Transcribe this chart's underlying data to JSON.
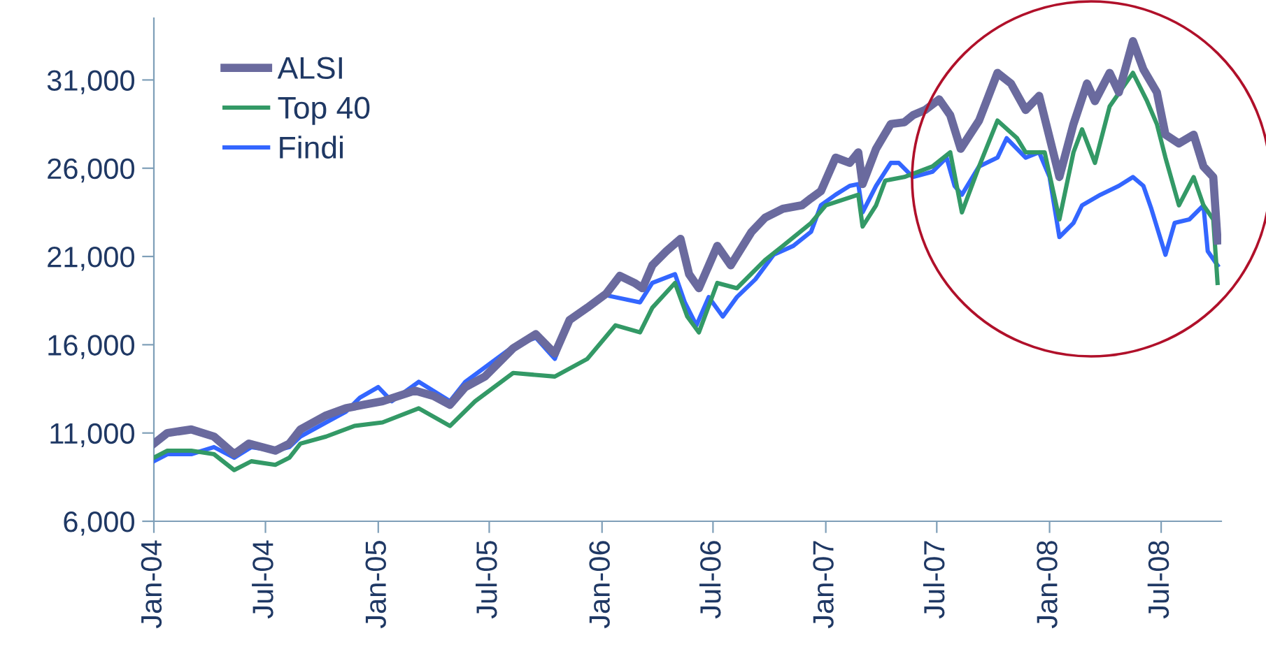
{
  "chart_data": {
    "type": "line",
    "xlim": [
      "2004-01-01",
      "2008-10-07"
    ],
    "xticks": [
      {
        "value": "2004-01-01",
        "label": "Jan-04"
      },
      {
        "value": "2004-07-01",
        "label": "Jul-04"
      },
      {
        "value": "2005-01-01",
        "label": "Jan-05"
      },
      {
        "value": "2005-07-01",
        "label": "Jul-05"
      },
      {
        "value": "2006-01-01",
        "label": "Jan-06"
      },
      {
        "value": "2006-07-01",
        "label": "Jul-06"
      },
      {
        "value": "2007-01-01",
        "label": "Jan-07"
      },
      {
        "value": "2007-07-01",
        "label": "Jul-07"
      },
      {
        "value": "2008-01-01",
        "label": "Jan-08"
      },
      {
        "value": "2008-07-01",
        "label": "Jul-08"
      }
    ],
    "ylim": [
      6000,
      34500
    ],
    "yticks": [
      {
        "value": 6000,
        "label": "6,000"
      },
      {
        "value": 11000,
        "label": "11,000"
      },
      {
        "value": 16000,
        "label": "16,000"
      },
      {
        "value": 21000,
        "label": "21,000"
      },
      {
        "value": 26000,
        "label": "26,000"
      },
      {
        "value": 31000,
        "label": "31,000"
      }
    ],
    "grid": false,
    "legend": "top left",
    "marker": "none",
    "line_style": "solid",
    "series": [
      {
        "name": "ALSI",
        "color": "#6a6a9e",
        "x": [
          "2004-01-01",
          "2004-01-23",
          "2004-03-02",
          "2004-04-08",
          "2004-05-11",
          "2004-06-04",
          "2004-07-17",
          "2004-08-09",
          "2004-08-27",
          "2004-10-08",
          "2004-11-09",
          "2004-12-08",
          "2005-01-08",
          "2005-03-02",
          "2005-04-01",
          "2005-04-28",
          "2005-05-23",
          "2005-06-24",
          "2005-08-09",
          "2005-09-15",
          "2005-10-16",
          "2005-11-09",
          "2005-12-08",
          "2006-01-08",
          "2006-01-30",
          "2006-02-23",
          "2006-03-08",
          "2006-03-24",
          "2006-04-16",
          "2006-05-09",
          "2006-05-23",
          "2006-06-08",
          "2006-07-08",
          "2006-07-30",
          "2006-09-02",
          "2006-09-24",
          "2006-10-23",
          "2006-11-23",
          "2006-12-08",
          "2006-12-24",
          "2007-01-17",
          "2007-02-09",
          "2007-02-23",
          "2007-03-02",
          "2007-03-24",
          "2007-04-17",
          "2007-05-09",
          "2007-05-23",
          "2007-06-12",
          "2007-07-05",
          "2007-07-23",
          "2007-08-09",
          "2007-09-08",
          "2007-10-08",
          "2007-10-30",
          "2007-11-23",
          "2007-12-15",
          "2008-01-17",
          "2008-02-09",
          "2008-03-02",
          "2008-03-15",
          "2008-04-08",
          "2008-04-23",
          "2008-05-16",
          "2008-06-02",
          "2008-06-24",
          "2008-07-08",
          "2008-07-30",
          "2008-08-23",
          "2008-09-08",
          "2008-09-24",
          "2008-10-01"
        ],
        "values": [
          10400,
          11000,
          11200,
          10800,
          9800,
          10400,
          10000,
          10400,
          11200,
          12000,
          12400,
          12600,
          12800,
          13400,
          13100,
          12600,
          13600,
          14200,
          15800,
          16600,
          15500,
          17400,
          18100,
          18900,
          19900,
          19500,
          19200,
          20500,
          21300,
          22000,
          20000,
          19200,
          21600,
          20500,
          22400,
          23200,
          23700,
          23900,
          24300,
          24700,
          26600,
          26300,
          26900,
          25100,
          27100,
          28500,
          28600,
          29000,
          29300,
          29900,
          29000,
          27100,
          28700,
          31400,
          30800,
          29300,
          30100,
          25500,
          28500,
          30800,
          29800,
          31400,
          30300,
          33200,
          31600,
          30300,
          27900,
          27400,
          27900,
          26100,
          25500,
          21900
        ]
      },
      {
        "name": "Top 40",
        "color": "#339966",
        "x": [
          "2004-01-01",
          "2004-01-23",
          "2004-03-02",
          "2004-04-08",
          "2004-05-11",
          "2004-06-08",
          "2004-07-17",
          "2004-08-09",
          "2004-08-27",
          "2004-10-08",
          "2004-11-23",
          "2005-01-08",
          "2005-03-08",
          "2005-04-28",
          "2005-06-08",
          "2005-08-09",
          "2005-10-16",
          "2005-12-08",
          "2006-01-23",
          "2006-03-04",
          "2006-03-24",
          "2006-04-30",
          "2006-05-20",
          "2006-06-08",
          "2006-07-08",
          "2006-08-09",
          "2006-09-24",
          "2006-10-23",
          "2006-12-08",
          "2007-01-01",
          "2007-02-23",
          "2007-03-02",
          "2007-03-24",
          "2007-04-08",
          "2007-05-09",
          "2007-06-24",
          "2007-07-23",
          "2007-08-11",
          "2007-09-08",
          "2007-10-08",
          "2007-11-09",
          "2007-11-23",
          "2007-12-24",
          "2008-01-17",
          "2008-02-09",
          "2008-02-23",
          "2008-03-15",
          "2008-04-08",
          "2008-05-16",
          "2008-06-08",
          "2008-06-24",
          "2008-07-08",
          "2008-07-30",
          "2008-08-23",
          "2008-09-08",
          "2008-09-24",
          "2008-10-01"
        ],
        "values": [
          9600,
          10000,
          10000,
          9800,
          8900,
          9400,
          9200,
          9600,
          10400,
          10800,
          11400,
          11600,
          12400,
          11400,
          12800,
          14400,
          14200,
          15200,
          17100,
          16700,
          18100,
          19500,
          17600,
          16700,
          19500,
          19200,
          20800,
          21600,
          22900,
          23900,
          24500,
          22700,
          23900,
          25300,
          25500,
          26100,
          26900,
          23500,
          26100,
          28700,
          27700,
          26900,
          26900,
          23100,
          26900,
          28200,
          26300,
          29500,
          31400,
          29800,
          28500,
          26600,
          23900,
          25500,
          23900,
          23100,
          19500
        ]
      },
      {
        "name": "Findi",
        "color": "#3366ff",
        "x": [
          "2004-01-01",
          "2004-01-23",
          "2004-03-02",
          "2004-04-08",
          "2004-05-11",
          "2004-06-08",
          "2004-07-17",
          "2004-08-09",
          "2004-08-27",
          "2004-10-08",
          "2004-11-09",
          "2004-12-02",
          "2005-01-01",
          "2005-01-23",
          "2005-03-08",
          "2005-04-28",
          "2005-05-23",
          "2005-08-09",
          "2005-09-15",
          "2005-10-16",
          "2005-11-09",
          "2006-01-08",
          "2006-03-04",
          "2006-03-24",
          "2006-04-30",
          "2006-05-16",
          "2006-06-04",
          "2006-06-24",
          "2006-07-17",
          "2006-08-09",
          "2006-09-08",
          "2006-10-08",
          "2006-11-09",
          "2006-12-08",
          "2006-12-24",
          "2007-01-17",
          "2007-02-09",
          "2007-02-23",
          "2007-03-02",
          "2007-03-24",
          "2007-04-17",
          "2007-04-30",
          "2007-05-23",
          "2007-06-24",
          "2007-07-17",
          "2007-07-30",
          "2007-08-11",
          "2007-09-08",
          "2007-10-08",
          "2007-10-23",
          "2007-11-23",
          "2007-12-15",
          "2008-01-01",
          "2008-01-17",
          "2008-02-09",
          "2008-02-23",
          "2008-03-24",
          "2008-04-23",
          "2008-05-16",
          "2008-06-02",
          "2008-06-15",
          "2008-07-08",
          "2008-07-23",
          "2008-08-16",
          "2008-09-08",
          "2008-09-15",
          "2008-10-01"
        ],
        "values": [
          9400,
          9800,
          9800,
          10200,
          9600,
          10200,
          10000,
          10200,
          10800,
          11600,
          12200,
          13000,
          13600,
          12800,
          13900,
          12800,
          13900,
          15900,
          16400,
          15200,
          17400,
          18800,
          18400,
          19500,
          20000,
          18400,
          17100,
          18700,
          17600,
          18700,
          19700,
          21100,
          21600,
          22400,
          23900,
          24500,
          25000,
          25100,
          23500,
          25000,
          26300,
          26300,
          25500,
          25800,
          26600,
          25000,
          24500,
          26100,
          26600,
          27700,
          26600,
          26900,
          25500,
          22100,
          22900,
          23900,
          24500,
          25000,
          25500,
          25000,
          23700,
          21100,
          22900,
          23100,
          23900,
          21300,
          20500
        ]
      }
    ]
  }
}
